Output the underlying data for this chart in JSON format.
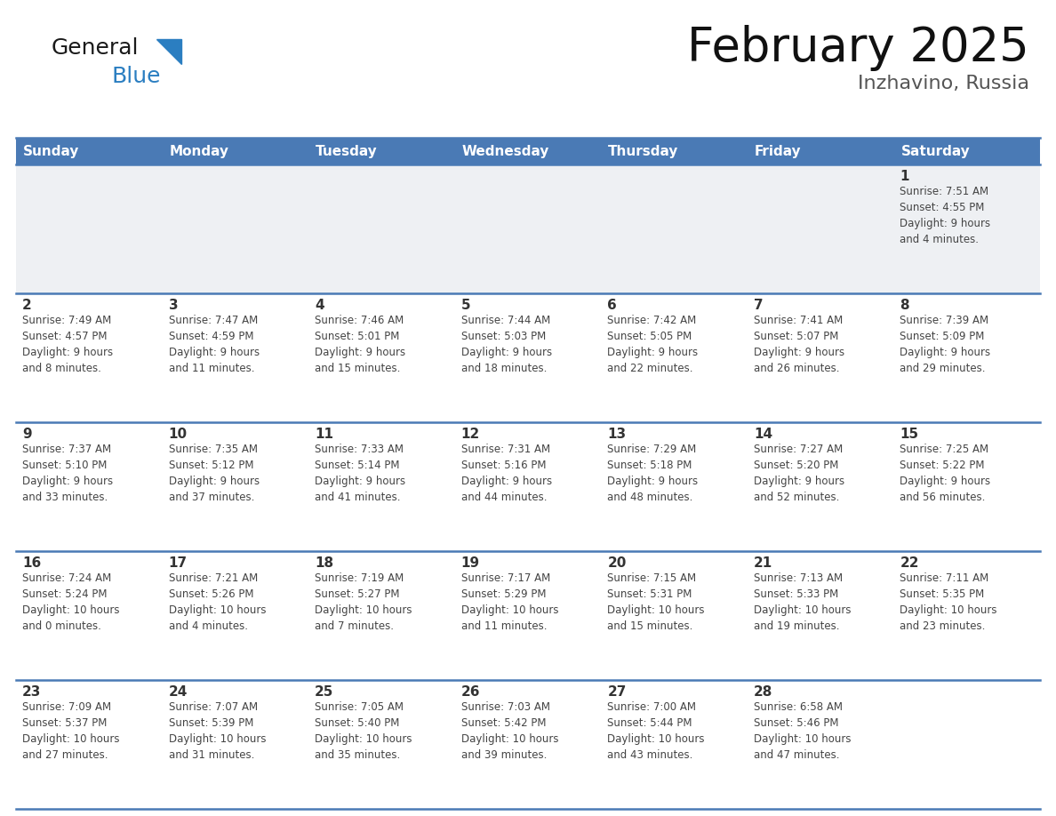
{
  "title": "February 2025",
  "subtitle": "Inzhavino, Russia",
  "header_color": "#4a7ab5",
  "header_text_color": "#ffffff",
  "row1_bg": "#eef0f3",
  "cell_bg": "#ffffff",
  "border_color": "#4a7ab5",
  "day_num_color": "#333333",
  "info_text_color": "#444444",
  "days_of_week": [
    "Sunday",
    "Monday",
    "Tuesday",
    "Wednesday",
    "Thursday",
    "Friday",
    "Saturday"
  ],
  "calendar_data": [
    [
      {
        "day": "",
        "info": ""
      },
      {
        "day": "",
        "info": ""
      },
      {
        "day": "",
        "info": ""
      },
      {
        "day": "",
        "info": ""
      },
      {
        "day": "",
        "info": ""
      },
      {
        "day": "",
        "info": ""
      },
      {
        "day": "1",
        "info": "Sunrise: 7:51 AM\nSunset: 4:55 PM\nDaylight: 9 hours\nand 4 minutes."
      }
    ],
    [
      {
        "day": "2",
        "info": "Sunrise: 7:49 AM\nSunset: 4:57 PM\nDaylight: 9 hours\nand 8 minutes."
      },
      {
        "day": "3",
        "info": "Sunrise: 7:47 AM\nSunset: 4:59 PM\nDaylight: 9 hours\nand 11 minutes."
      },
      {
        "day": "4",
        "info": "Sunrise: 7:46 AM\nSunset: 5:01 PM\nDaylight: 9 hours\nand 15 minutes."
      },
      {
        "day": "5",
        "info": "Sunrise: 7:44 AM\nSunset: 5:03 PM\nDaylight: 9 hours\nand 18 minutes."
      },
      {
        "day": "6",
        "info": "Sunrise: 7:42 AM\nSunset: 5:05 PM\nDaylight: 9 hours\nand 22 minutes."
      },
      {
        "day": "7",
        "info": "Sunrise: 7:41 AM\nSunset: 5:07 PM\nDaylight: 9 hours\nand 26 minutes."
      },
      {
        "day": "8",
        "info": "Sunrise: 7:39 AM\nSunset: 5:09 PM\nDaylight: 9 hours\nand 29 minutes."
      }
    ],
    [
      {
        "day": "9",
        "info": "Sunrise: 7:37 AM\nSunset: 5:10 PM\nDaylight: 9 hours\nand 33 minutes."
      },
      {
        "day": "10",
        "info": "Sunrise: 7:35 AM\nSunset: 5:12 PM\nDaylight: 9 hours\nand 37 minutes."
      },
      {
        "day": "11",
        "info": "Sunrise: 7:33 AM\nSunset: 5:14 PM\nDaylight: 9 hours\nand 41 minutes."
      },
      {
        "day": "12",
        "info": "Sunrise: 7:31 AM\nSunset: 5:16 PM\nDaylight: 9 hours\nand 44 minutes."
      },
      {
        "day": "13",
        "info": "Sunrise: 7:29 AM\nSunset: 5:18 PM\nDaylight: 9 hours\nand 48 minutes."
      },
      {
        "day": "14",
        "info": "Sunrise: 7:27 AM\nSunset: 5:20 PM\nDaylight: 9 hours\nand 52 minutes."
      },
      {
        "day": "15",
        "info": "Sunrise: 7:25 AM\nSunset: 5:22 PM\nDaylight: 9 hours\nand 56 minutes."
      }
    ],
    [
      {
        "day": "16",
        "info": "Sunrise: 7:24 AM\nSunset: 5:24 PM\nDaylight: 10 hours\nand 0 minutes."
      },
      {
        "day": "17",
        "info": "Sunrise: 7:21 AM\nSunset: 5:26 PM\nDaylight: 10 hours\nand 4 minutes."
      },
      {
        "day": "18",
        "info": "Sunrise: 7:19 AM\nSunset: 5:27 PM\nDaylight: 10 hours\nand 7 minutes."
      },
      {
        "day": "19",
        "info": "Sunrise: 7:17 AM\nSunset: 5:29 PM\nDaylight: 10 hours\nand 11 minutes."
      },
      {
        "day": "20",
        "info": "Sunrise: 7:15 AM\nSunset: 5:31 PM\nDaylight: 10 hours\nand 15 minutes."
      },
      {
        "day": "21",
        "info": "Sunrise: 7:13 AM\nSunset: 5:33 PM\nDaylight: 10 hours\nand 19 minutes."
      },
      {
        "day": "22",
        "info": "Sunrise: 7:11 AM\nSunset: 5:35 PM\nDaylight: 10 hours\nand 23 minutes."
      }
    ],
    [
      {
        "day": "23",
        "info": "Sunrise: 7:09 AM\nSunset: 5:37 PM\nDaylight: 10 hours\nand 27 minutes."
      },
      {
        "day": "24",
        "info": "Sunrise: 7:07 AM\nSunset: 5:39 PM\nDaylight: 10 hours\nand 31 minutes."
      },
      {
        "day": "25",
        "info": "Sunrise: 7:05 AM\nSunset: 5:40 PM\nDaylight: 10 hours\nand 35 minutes."
      },
      {
        "day": "26",
        "info": "Sunrise: 7:03 AM\nSunset: 5:42 PM\nDaylight: 10 hours\nand 39 minutes."
      },
      {
        "day": "27",
        "info": "Sunrise: 7:00 AM\nSunset: 5:44 PM\nDaylight: 10 hours\nand 43 minutes."
      },
      {
        "day": "28",
        "info": "Sunrise: 6:58 AM\nSunset: 5:46 PM\nDaylight: 10 hours\nand 47 minutes."
      },
      {
        "day": "",
        "info": ""
      }
    ]
  ],
  "logo_general_color": "#1a1a1a",
  "logo_blue_color": "#2b7ec1",
  "logo_triangle_color": "#2b7ec1",
  "fig_width": 11.88,
  "fig_height": 9.18,
  "dpi": 100
}
